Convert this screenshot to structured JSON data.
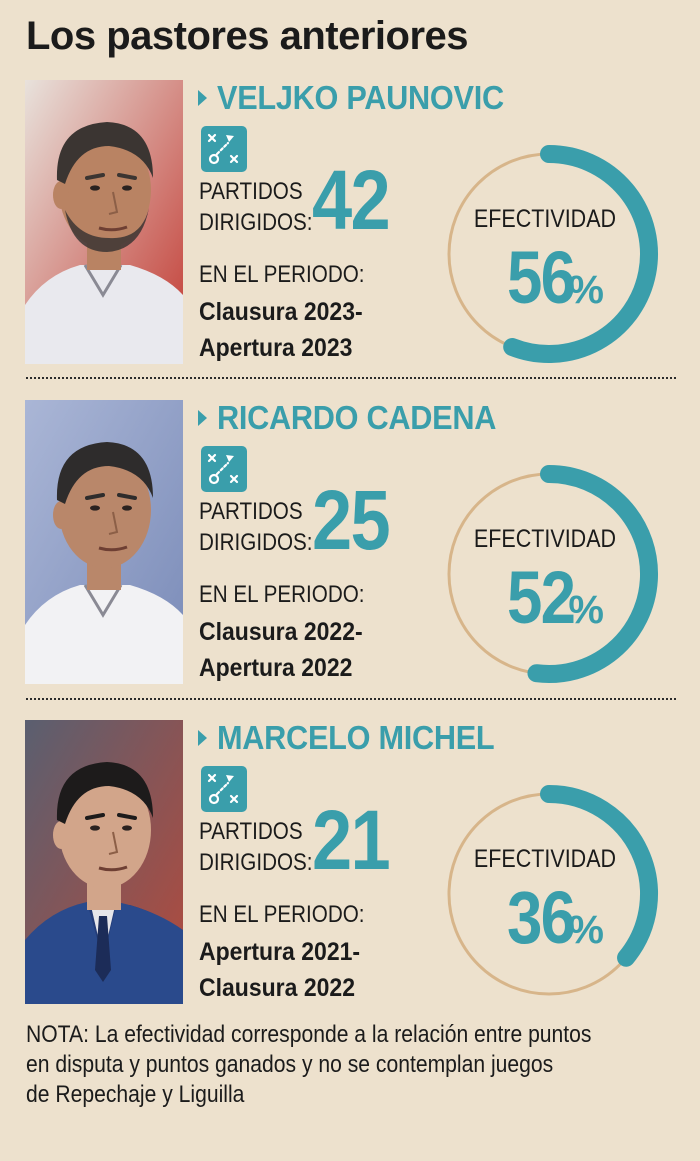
{
  "page": {
    "title": "Los pastores anteriores",
    "partidos_label_1": "PARTIDOS",
    "partidos_label_2": "DIRIGIDOS:",
    "periodo_label": "EN EL PERIODO:",
    "efectividad_label": "EFECTIVIDAD",
    "note_lines": [
      "NOTA: La efectividad corresponde a la relación entre puntos",
      "en disputa y puntos ganados y no se contemplan juegos",
      "de Repechaje y Liguilla"
    ]
  },
  "colors": {
    "accent": "#3a9eab",
    "ring_track": "#d7b58a",
    "background": "#ede1cd",
    "text": "#1b1b1b"
  },
  "icons": {
    "section_marker": "triangle-right-icon",
    "tactics": "tactics-board-icon"
  },
  "chart_data": {
    "type": "gauge",
    "unit": "%",
    "coaches": [
      {
        "name": "VELJKO PAUNOVIC",
        "partidos": 42,
        "periodo": [
          "Clausura 2023-",
          "Apertura 2023"
        ],
        "efectividad": 56
      },
      {
        "name": "RICARDO CADENA",
        "partidos": 25,
        "periodo": [
          "Clausura 2022-",
          "Apertura 2022"
        ],
        "efectividad": 52
      },
      {
        "name": "MARCELO MICHEL",
        "partidos": 21,
        "periodo": [
          "Apertura 2021-",
          "Clausura 2022"
        ],
        "efectividad": 36
      }
    ]
  }
}
